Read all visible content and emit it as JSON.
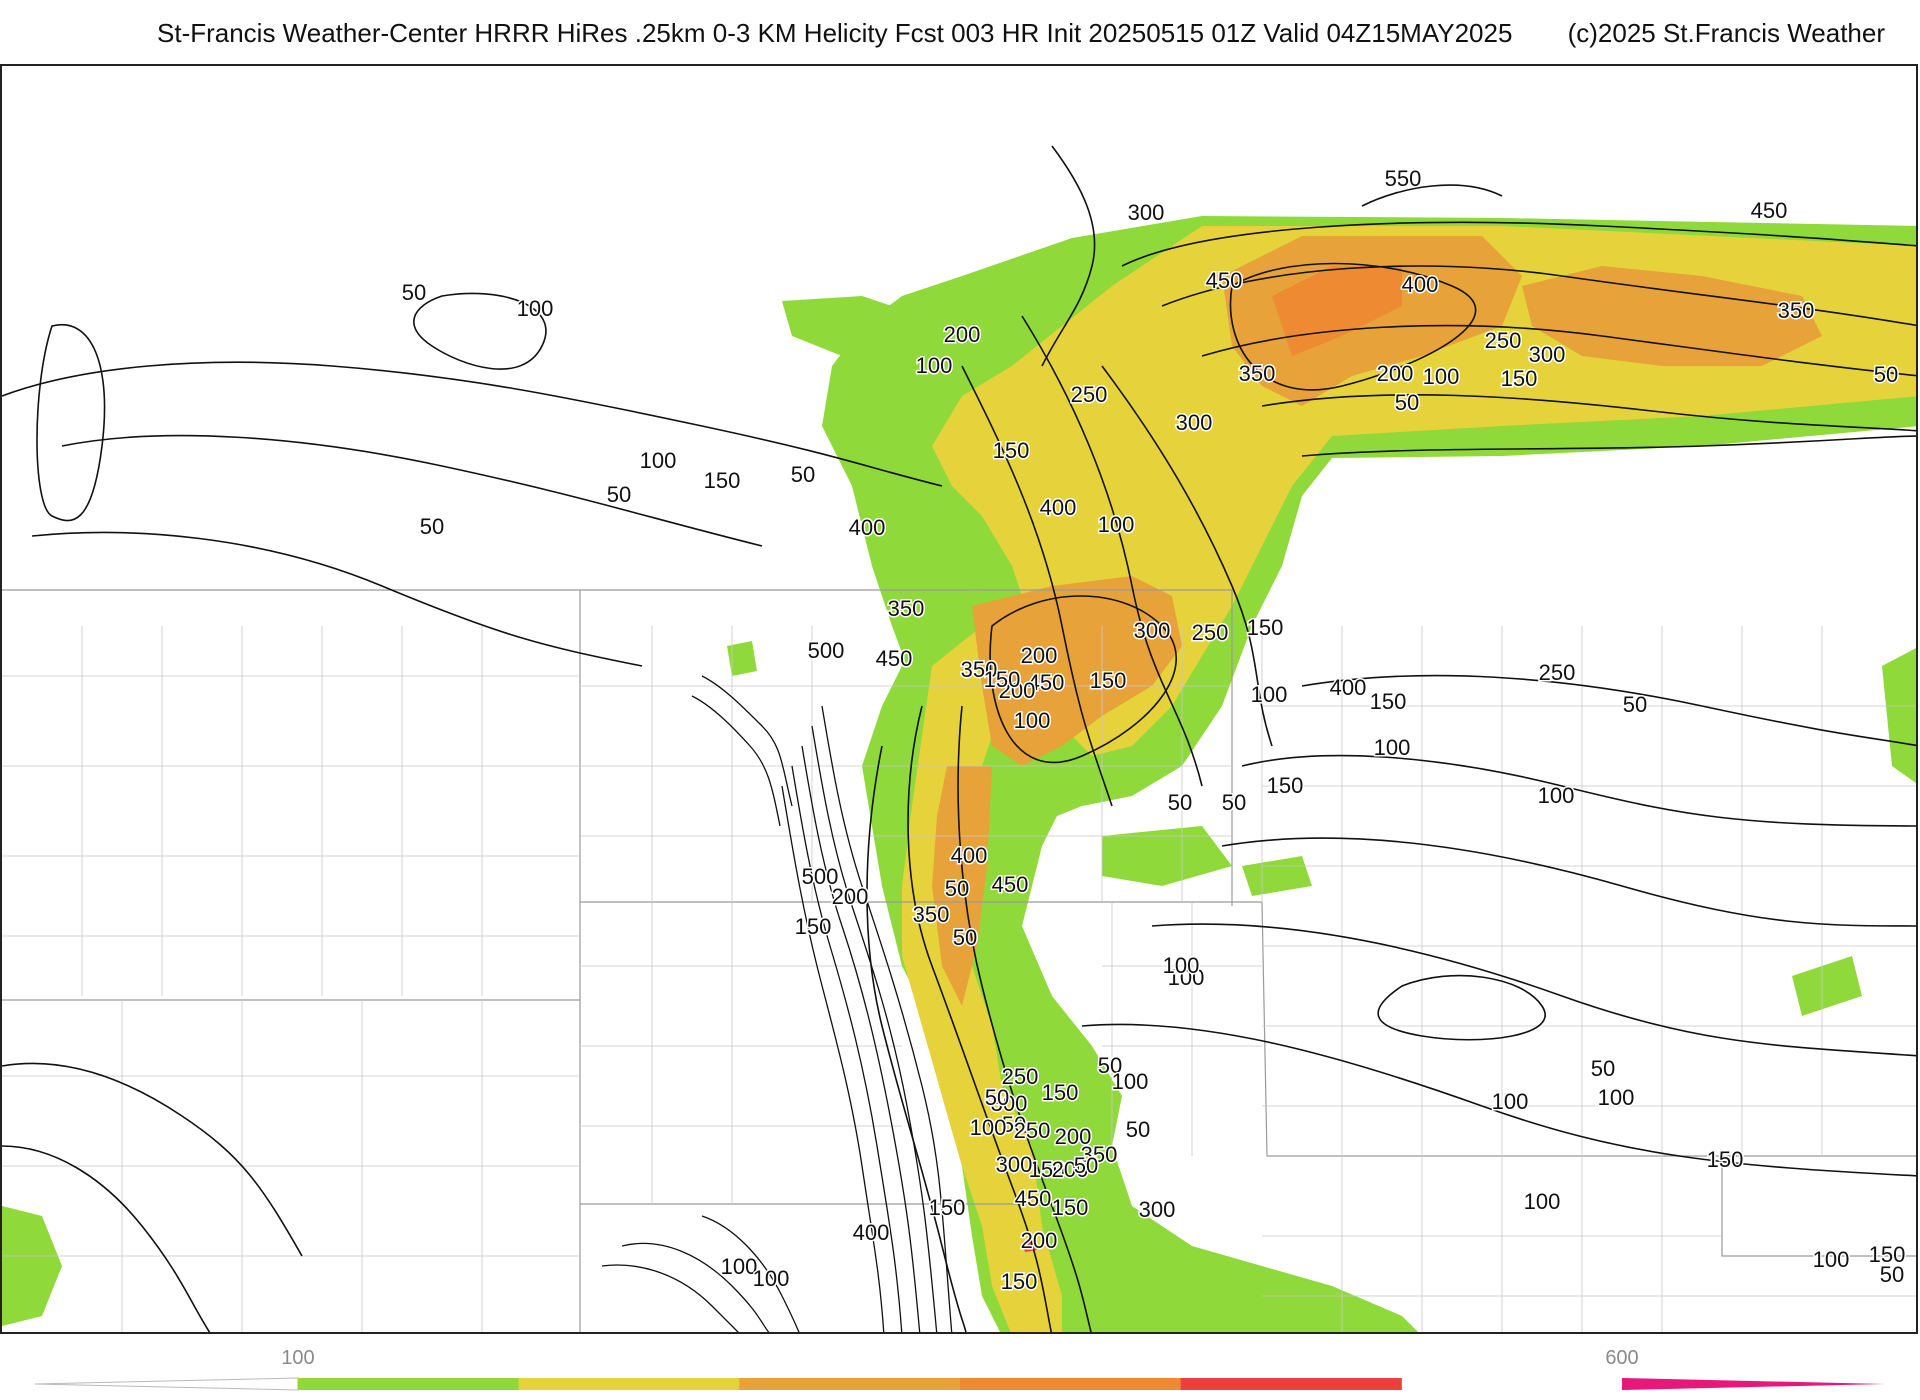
{
  "header": {
    "title": "St-Francis Weather-Center HRRR HiRes .25km 0-3 KM Helicity Fcst 003 HR Init 20250515 01Z  Valid 04Z15MAY2025",
    "copyright": "(c)2025 St.Francis Weather"
  },
  "colors": {
    "green": "#8fd93a",
    "yellow_green": "#c9dc3a",
    "yellow": "#e6d33c",
    "orange": "#e8a23a",
    "dark_orange": "#ee8b32",
    "red": "#ef3e3e",
    "magenta": "#e8177a",
    "contour": "#111111",
    "boundary": "#9a9a9a"
  },
  "colorbar": {
    "ticks": [
      "100",
      "600"
    ],
    "bins": [
      {
        "label": "below-100",
        "color": "#ffffff"
      },
      {
        "label": "100-200",
        "color": "#8fd93a"
      },
      {
        "label": "200-300",
        "color": "#e6d33c"
      },
      {
        "label": "300-400",
        "color": "#e8a23a"
      },
      {
        "label": "400-500",
        "color": "#ee8b32"
      },
      {
        "label": "500-600",
        "color": "#ef3e3e"
      },
      {
        "label": "above-600",
        "color": "#e8177a"
      }
    ]
  },
  "contour_labels": [
    "50",
    "100",
    "550",
    "450",
    "300",
    "450",
    "400",
    "350",
    "200",
    "100",
    "250",
    "200",
    "100",
    "150",
    "300",
    "350",
    "50",
    "150",
    "50",
    "250",
    "300",
    "150",
    "100",
    "150",
    "50",
    "100",
    "50",
    "50",
    "400",
    "400",
    "150",
    "200",
    "350",
    "300",
    "450",
    "500",
    "350",
    "250",
    "450",
    "100",
    "150",
    "200",
    "150",
    "50",
    "250",
    "100",
    "400",
    "150",
    "100",
    "100",
    "150",
    "50",
    "50",
    "500",
    "400",
    "450",
    "350",
    "50",
    "50",
    "200",
    "150",
    "100",
    "100",
    "50",
    "250",
    "150",
    "300",
    "50",
    "50",
    "300",
    "100",
    "50",
    "200",
    "100",
    "250",
    "150",
    "300",
    "200",
    "150",
    "400",
    "350",
    "450",
    "150",
    "50",
    "200",
    "150",
    "100",
    "100",
    "100",
    "50",
    "100",
    "100",
    "150",
    "100",
    "150",
    "50"
  ]
}
